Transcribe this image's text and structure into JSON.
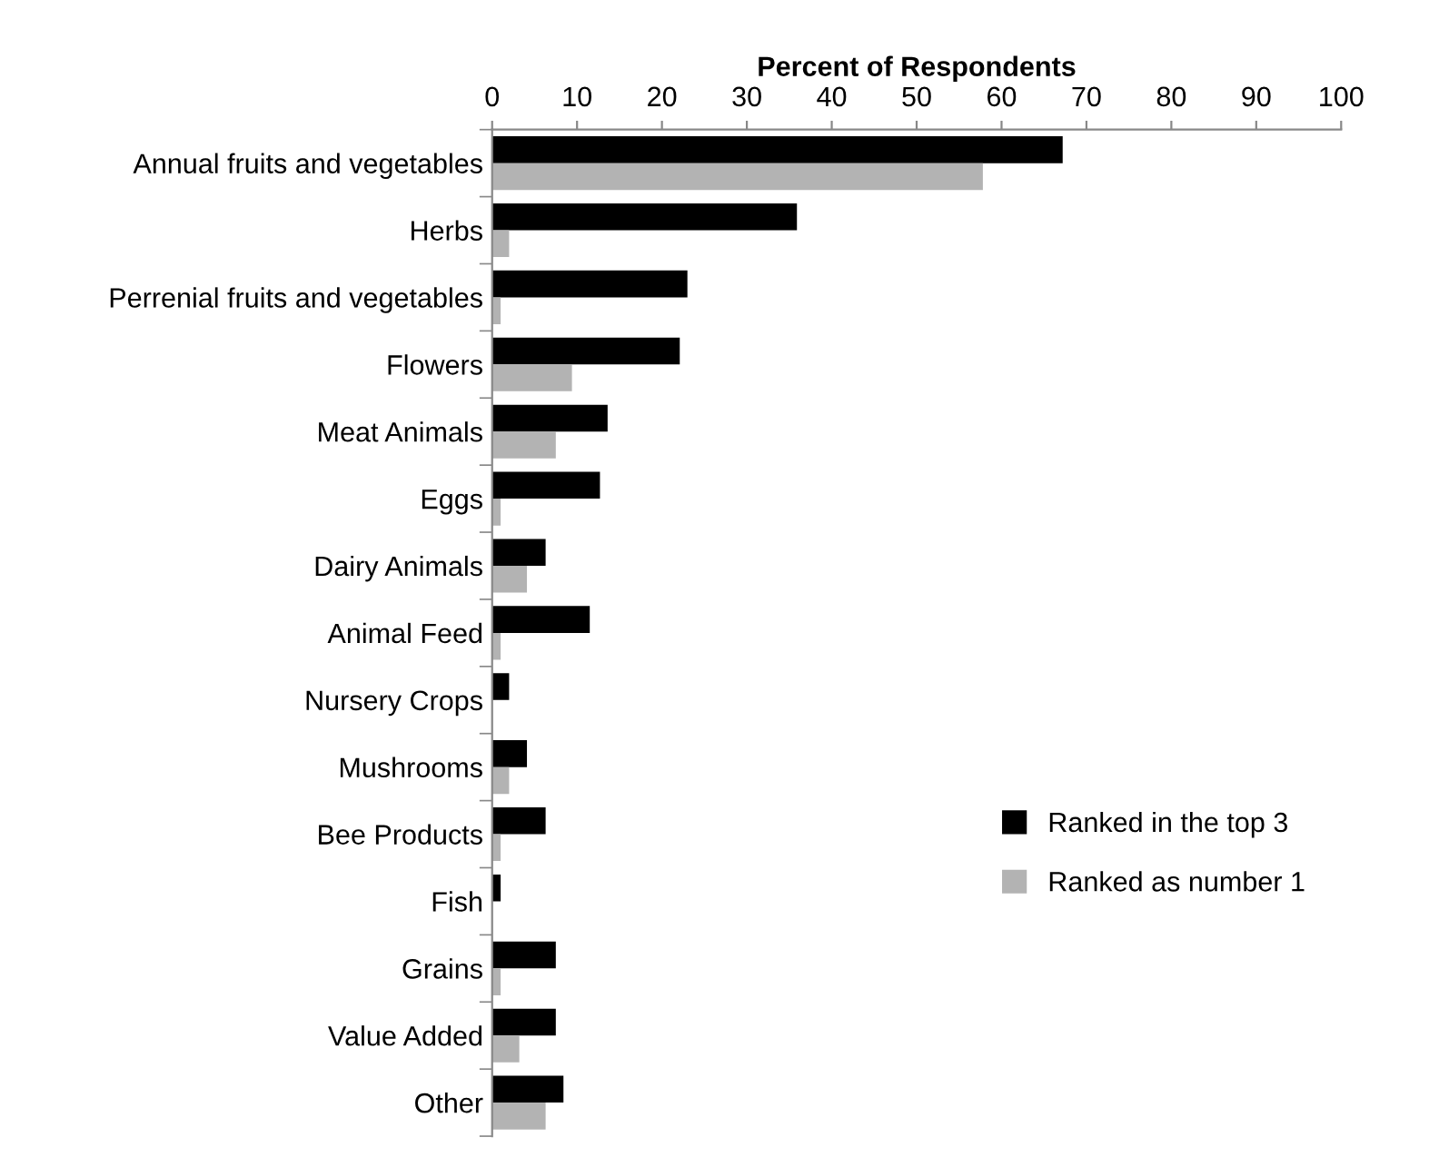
{
  "chart_data": {
    "type": "bar",
    "orientation": "horizontal",
    "xlabel": "Percent of Respondents",
    "categories": [
      "Annual fruits and vegetables",
      "Herbs",
      "Perrenial fruits and vegetables",
      "Flowers",
      "Meat Animals",
      "Eggs",
      "Dairy Animals",
      "Animal Feed",
      "Nursery Crops",
      "Mushrooms",
      "Bee Products",
      "Fish",
      "Grains",
      "Value Added",
      "Other"
    ],
    "series": [
      {
        "name": "Ranked in the top 3",
        "color": "#000000",
        "values": [
          67.2,
          35.9,
          23.0,
          22.1,
          13.6,
          12.7,
          6.3,
          11.5,
          2.0,
          4.1,
          6.3,
          1.0,
          7.5,
          7.5,
          8.4
        ]
      },
      {
        "name": "Ranked as number 1",
        "color": "#b3b3b3",
        "values": [
          57.8,
          2.0,
          1.0,
          9.4,
          7.5,
          1.0,
          4.1,
          1.0,
          0,
          2.0,
          1.0,
          0,
          1.0,
          3.2,
          6.3
        ]
      }
    ],
    "xlim": [
      0,
      100
    ],
    "xticks": [
      0,
      10,
      20,
      30,
      40,
      50,
      60,
      70,
      80,
      90,
      100
    ],
    "grid": false,
    "legend": "bottom right"
  }
}
